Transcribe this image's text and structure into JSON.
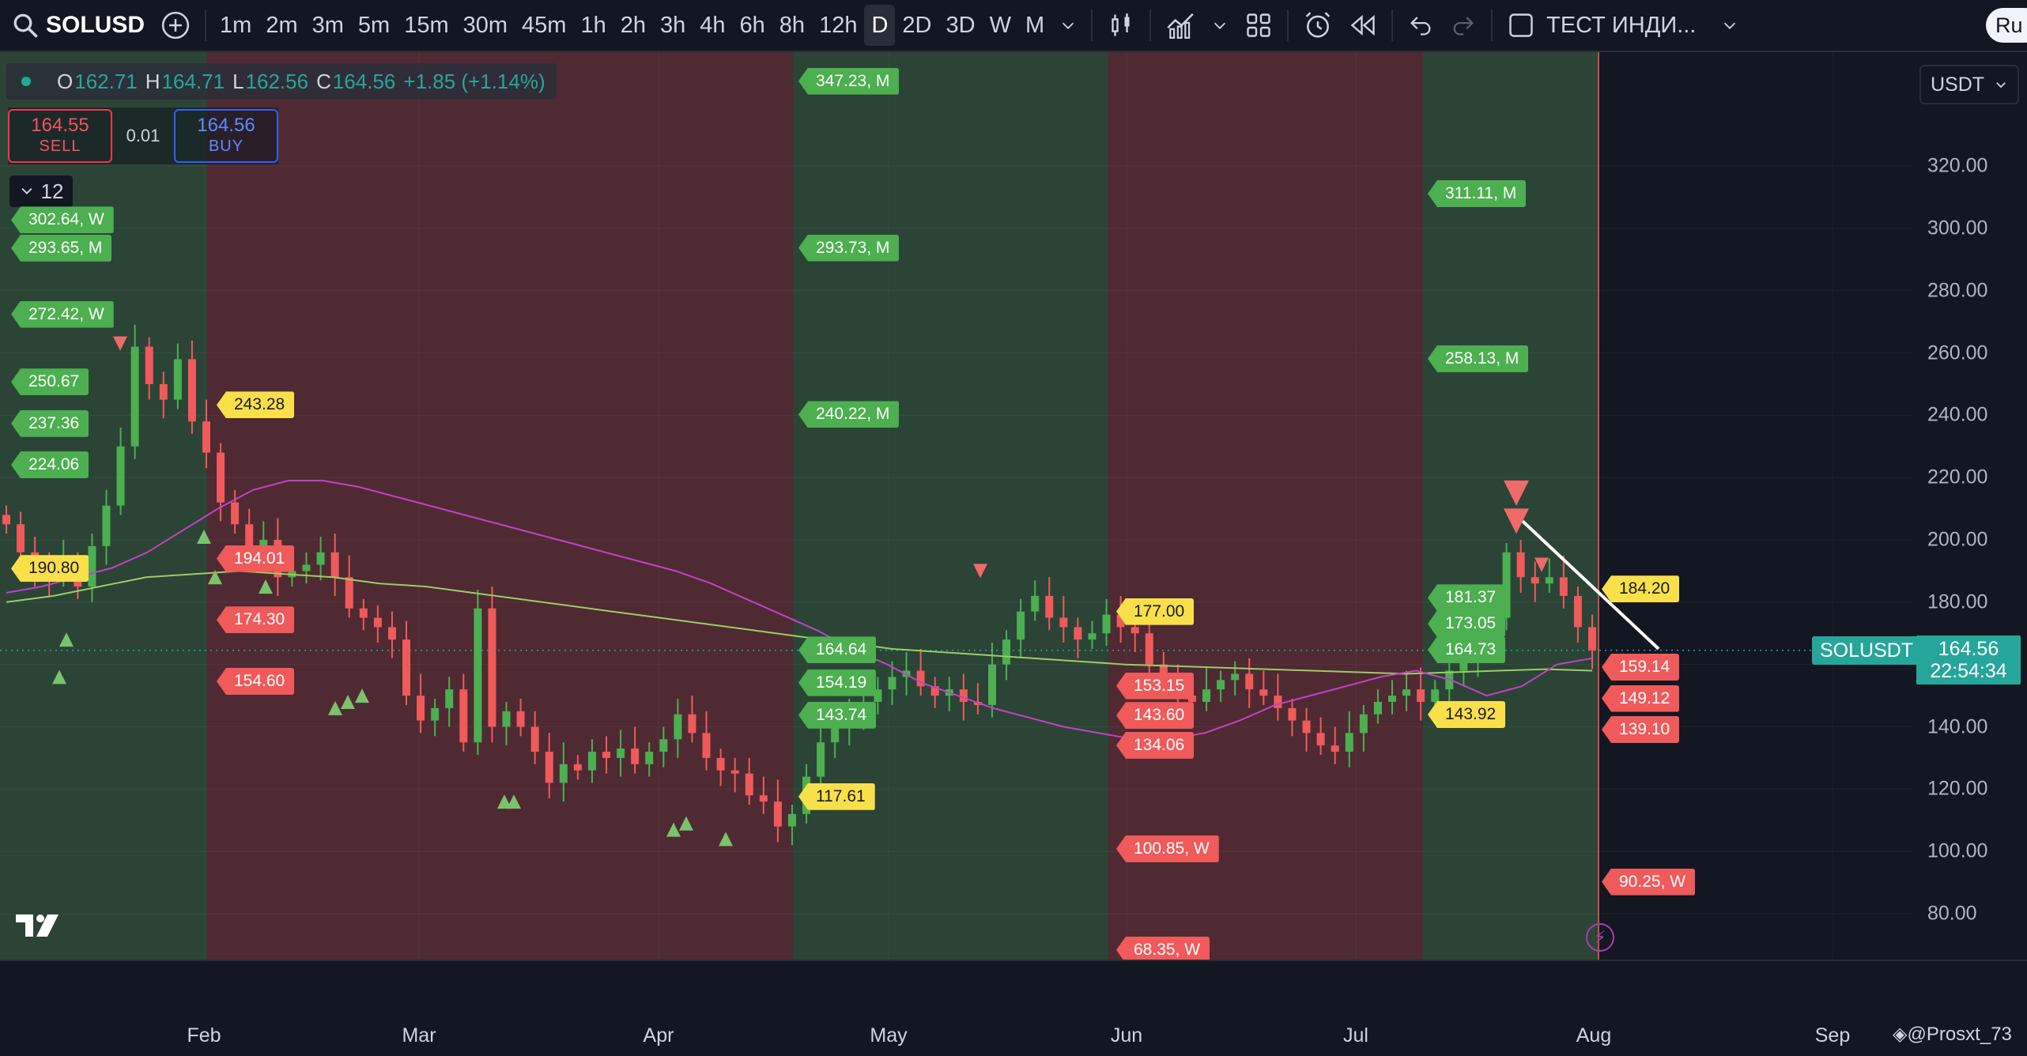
{
  "toolbar": {
    "symbol": "SOLUSD",
    "intervals": [
      "1m",
      "2m",
      "3m",
      "5m",
      "15m",
      "30m",
      "45m",
      "1h",
      "2h",
      "3h",
      "4h",
      "6h",
      "8h",
      "12h",
      "D",
      "2D",
      "3D",
      "W",
      "M"
    ],
    "active_interval": "D",
    "indicator_template": "ТЕСТ ИНДИ...",
    "lang": "Ru"
  },
  "ohlc": {
    "open_label": "O",
    "open": "162.71",
    "high_label": "H",
    "high": "164.71",
    "low_label": "L",
    "low": "162.56",
    "close_label": "C",
    "close": "164.56",
    "change": "+1.85 (+1.14%)"
  },
  "trade": {
    "sell_price": "164.55",
    "sell_label": "SELL",
    "spread": "0.01",
    "buy_price": "164.56",
    "buy_label": "BUY"
  },
  "indicators_count": "12",
  "currency": "USDT",
  "last_price": {
    "symbol": "SOLUSDT",
    "price": "164.56",
    "countdown": "22:54:34"
  },
  "author": "@Prosxt_73",
  "colors": {
    "background": "#131722",
    "bull": "#26a69a",
    "bull_candle": "#4caf50",
    "bear_candle": "#f05a5a",
    "green_zone": "#2b4436",
    "red_zone": "#4f2a32",
    "ma_fast": "#c342c8",
    "ma_slow": "#9ccc65"
  },
  "chart_data": {
    "type": "candlestick",
    "y_axis": {
      "ticks": [
        "320.00",
        "300.00",
        "280.00",
        "260.00",
        "240.00",
        "220.00",
        "200.00",
        "180.00",
        "160.00",
        "140.00",
        "120.00",
        "100.00",
        "80.00"
      ],
      "range": [
        66,
        335
      ]
    },
    "x_axis": {
      "ticks": [
        "Feb",
        "Mar",
        "Apr",
        "May",
        "Jun",
        "Jul",
        "Aug",
        "Sep"
      ]
    },
    "zones": [
      {
        "color": "green",
        "from": "start",
        "to": "Feb 1"
      },
      {
        "color": "red",
        "from": "Feb 1",
        "to": "Apr 20"
      },
      {
        "color": "green",
        "from": "Apr 20",
        "to": "Jun 1"
      },
      {
        "color": "red",
        "from": "Jun 1",
        "to": "Jul 12"
      },
      {
        "color": "green",
        "from": "Jul 12",
        "to": "Aug 1"
      }
    ],
    "level_tags": [
      {
        "text": "302.64, W",
        "color": "green",
        "price": 302.64
      },
      {
        "text": "293.65, M",
        "color": "green",
        "price": 293.65
      },
      {
        "text": "272.42, W",
        "color": "green",
        "price": 272.42
      },
      {
        "text": "250.67",
        "color": "green",
        "price": 250.67
      },
      {
        "text": "237.36",
        "color": "green",
        "price": 237.36
      },
      {
        "text": "224.06",
        "color": "green",
        "price": 224.06
      },
      {
        "text": "190.80",
        "color": "yellow",
        "price": 190.8
      },
      {
        "text": "243.28",
        "color": "yellow",
        "price": 243.28
      },
      {
        "text": "194.01",
        "color": "red",
        "price": 194.01
      },
      {
        "text": "174.30",
        "color": "red",
        "price": 174.3
      },
      {
        "text": "154.60",
        "color": "red",
        "price": 154.6
      },
      {
        "text": "347.23, M",
        "color": "green",
        "price": 347.23
      },
      {
        "text": "293.73, M",
        "color": "green",
        "price": 293.73
      },
      {
        "text": "240.22, M",
        "color": "green",
        "price": 240.22
      },
      {
        "text": "164.64",
        "color": "green",
        "price": 164.64
      },
      {
        "text": "154.19",
        "color": "green",
        "price": 154.19
      },
      {
        "text": "143.74",
        "color": "green",
        "price": 143.74
      },
      {
        "text": "117.61",
        "color": "yellow",
        "price": 117.61
      },
      {
        "text": "177.00",
        "color": "yellow",
        "price": 177.0
      },
      {
        "text": "153.15",
        "color": "red",
        "price": 153.15
      },
      {
        "text": "143.60",
        "color": "red",
        "price": 143.6
      },
      {
        "text": "134.06",
        "color": "red",
        "price": 134.06
      },
      {
        "text": "100.85, W",
        "color": "red",
        "price": 100.85
      },
      {
        "text": "68.35, W",
        "color": "red",
        "price": 68.35
      },
      {
        "text": "311.11, M",
        "color": "green",
        "price": 311.11
      },
      {
        "text": "258.13, M",
        "color": "green",
        "price": 258.13
      },
      {
        "text": "181.37",
        "color": "green",
        "price": 181.37
      },
      {
        "text": "173.05",
        "color": "green",
        "price": 173.05
      },
      {
        "text": "164.73",
        "color": "green",
        "price": 164.73
      },
      {
        "text": "143.92",
        "color": "yellow",
        "price": 143.92
      },
      {
        "text": "184.20",
        "color": "yellow",
        "price": 184.2
      },
      {
        "text": "159.14",
        "color": "red",
        "price": 159.14
      },
      {
        "text": "149.12",
        "color": "red",
        "price": 149.12
      },
      {
        "text": "139.10",
        "color": "red",
        "price": 139.1
      },
      {
        "text": "90.25, W",
        "color": "red",
        "price": 90.25
      }
    ],
    "close_series": [
      205,
      196,
      190,
      188,
      193,
      185,
      198,
      211,
      230,
      262,
      250,
      245,
      258,
      238,
      228,
      212,
      205,
      196,
      200,
      188,
      190,
      192,
      196,
      188,
      178,
      175,
      172,
      168,
      150,
      142,
      146,
      152,
      135,
      178,
      140,
      145,
      140,
      132,
      122,
      128,
      126,
      132,
      130,
      133,
      128,
      132,
      136,
      144,
      138,
      130,
      126,
      125,
      118,
      116,
      108,
      112,
      124,
      135,
      140,
      142,
      148,
      152,
      156,
      158,
      153,
      150,
      152,
      148,
      147,
      160,
      168,
      177,
      182,
      175,
      172,
      168,
      170,
      176,
      172,
      170,
      160,
      155,
      150,
      148,
      152,
      155,
      157,
      152,
      150,
      146,
      142,
      138,
      134,
      132,
      138,
      144,
      148,
      150,
      152,
      148,
      152,
      158,
      162,
      168,
      175,
      196,
      188,
      186,
      188,
      182,
      172,
      164.56
    ],
    "ma_fast": [
      183,
      185,
      188,
      191,
      196,
      203,
      210,
      216,
      219,
      219,
      217,
      214,
      211,
      208,
      205,
      202,
      199,
      196,
      193,
      190,
      186,
      181,
      176,
      171,
      165,
      160,
      154,
      150,
      146,
      143,
      140,
      138,
      136,
      136,
      138,
      142,
      147,
      150,
      153,
      156,
      158,
      155,
      150,
      153,
      160,
      162
    ],
    "ma_slow": [
      180,
      182,
      185,
      188,
      189,
      190,
      189,
      188,
      186,
      185,
      183,
      181,
      179,
      177,
      175,
      173,
      171,
      169,
      167,
      165,
      164,
      163,
      162,
      161,
      160,
      159.5,
      159,
      158.5,
      158,
      157.5,
      157,
      157.5,
      158,
      158.5,
      158
    ]
  }
}
